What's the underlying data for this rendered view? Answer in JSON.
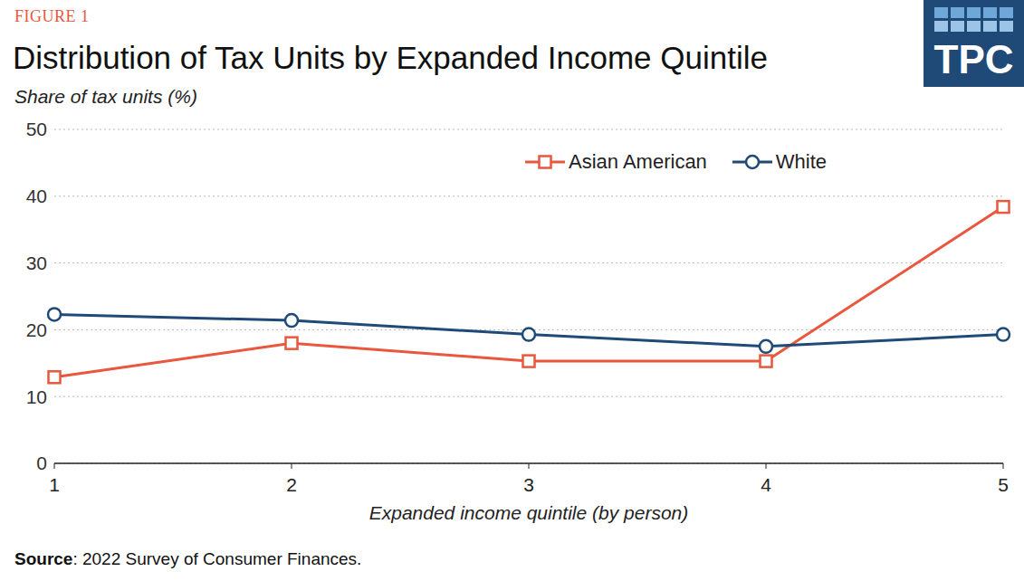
{
  "figure_label": "FIGURE 1",
  "logo": "TPC",
  "source": "Source: 2022 Survey of Consumer Finances.",
  "chart_data": {
    "type": "line",
    "title": "Distribution of Tax Units by Expanded Income Quintile",
    "subtitle": "Share of tax units (%)",
    "x_label": "Expanded income quintile (by person)",
    "categories": [
      "1",
      "2",
      "3",
      "4",
      "5"
    ],
    "series": [
      {
        "name": "Asian American",
        "color": "#e8573e",
        "marker": "square",
        "values": [
          12.9,
          18.0,
          15.3,
          15.3,
          38.4
        ]
      },
      {
        "name": "White",
        "color": "#1f4a78",
        "marker": "circle",
        "values": [
          22.3,
          21.4,
          19.3,
          17.5,
          19.3
        ]
      }
    ],
    "ylim": [
      0,
      50
    ],
    "yticks": [
      0,
      10,
      20,
      30,
      40,
      50
    ],
    "grid": true,
    "legend": "top-right"
  }
}
